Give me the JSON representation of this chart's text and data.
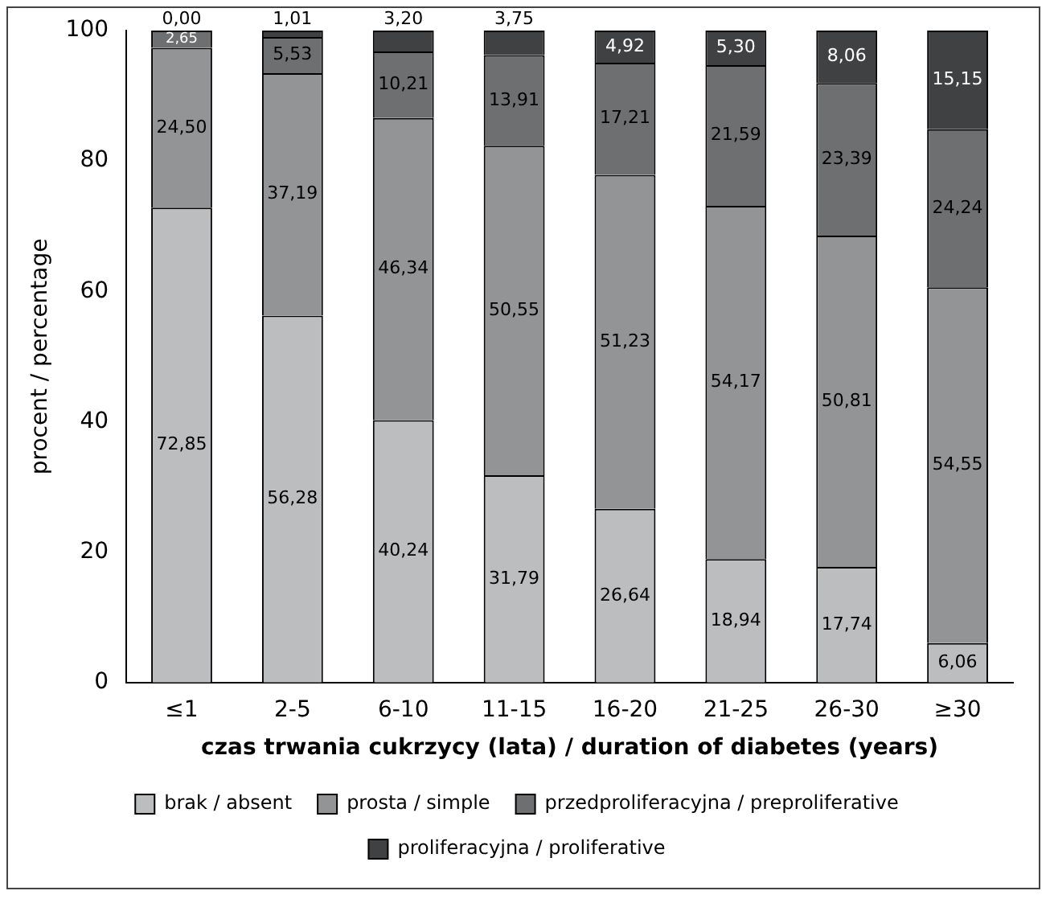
{
  "chart_data": {
    "type": "bar",
    "stacked": true,
    "xlabel": "czas trwania cukrzycy (lata) / duration of diabetes (years)",
    "ylabel": "procent / percentage",
    "categories": [
      "≤1",
      "2-5",
      "6-10",
      "11-15",
      "16-20",
      "21-25",
      "26-30",
      "≥30"
    ],
    "ylim": [
      0,
      100
    ],
    "yticks": [
      0,
      20,
      40,
      60,
      80,
      100
    ],
    "grid": false,
    "legend": "bottom",
    "series": [
      {
        "name": "brak / absent",
        "color": "#bcbdbf",
        "values": [
          72.85,
          56.28,
          40.24,
          31.79,
          26.64,
          18.94,
          17.74,
          6.06
        ],
        "value_labels": [
          "72,85",
          "56,28",
          "40,24",
          "31,79",
          "26,64",
          "18,94",
          "17,74",
          "6,06"
        ]
      },
      {
        "name": "prosta / simple",
        "color": "#939496",
        "values": [
          24.5,
          37.19,
          46.34,
          50.55,
          51.23,
          54.17,
          50.81,
          54.55
        ],
        "value_labels": [
          "24,50",
          "37,19",
          "46,34",
          "50,55",
          "51,23",
          "54,17",
          "50,81",
          "54,55"
        ]
      },
      {
        "name": "przedproliferacyjna / preproliferative",
        "color": "#6e6f71",
        "values": [
          2.65,
          5.53,
          10.21,
          13.91,
          17.21,
          21.59,
          23.39,
          24.24
        ],
        "value_labels": [
          "2,65",
          "5,53",
          "10,21",
          "13,91",
          "17,21",
          "21,59",
          "23,39",
          "24,24"
        ]
      },
      {
        "name": "proliferacyjna / proliferative",
        "color": "#404143",
        "values": [
          0,
          1.01,
          3.2,
          3.75,
          4.92,
          5.3,
          8.06,
          15.15
        ],
        "value_labels": [
          "0,00",
          "1,01",
          "3,20",
          "3,75",
          "4,92",
          "5,30",
          "8,06",
          "15,15"
        ]
      }
    ]
  }
}
